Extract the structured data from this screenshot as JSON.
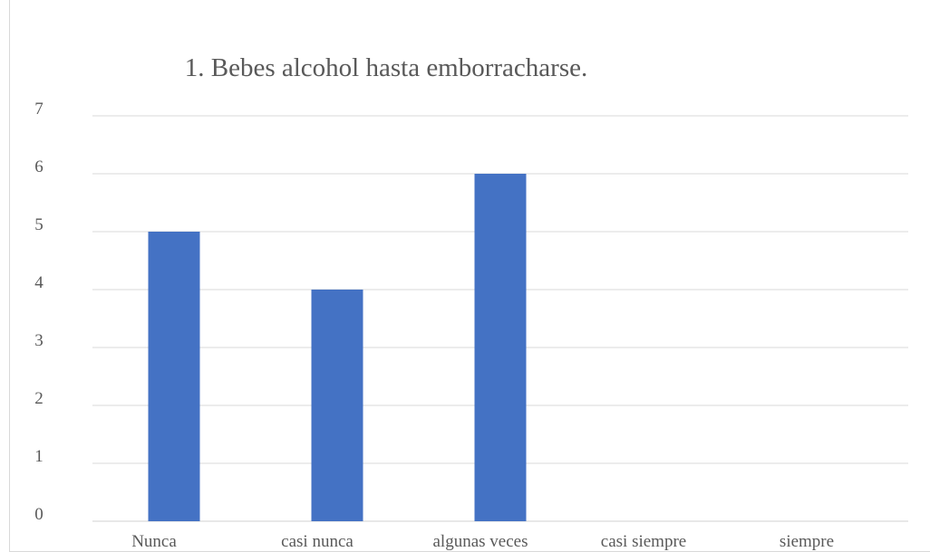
{
  "chart_data": {
    "type": "bar",
    "title": "1. Bebes alcohol hasta emborracharse.",
    "categories": [
      "Nunca",
      "casi nunca",
      "algunas veces",
      "casi siempre",
      "siempre"
    ],
    "values": [
      5,
      4,
      6,
      0,
      0
    ],
    "y_ticks": [
      "0",
      "1",
      "2",
      "3",
      "4",
      "5",
      "6",
      "7"
    ],
    "ylim": [
      0,
      7
    ],
    "xlabel": "",
    "ylabel": "",
    "grid": true,
    "legend": "none",
    "bar_color": "#4472C4",
    "grid_color": "#d9d9d9"
  }
}
